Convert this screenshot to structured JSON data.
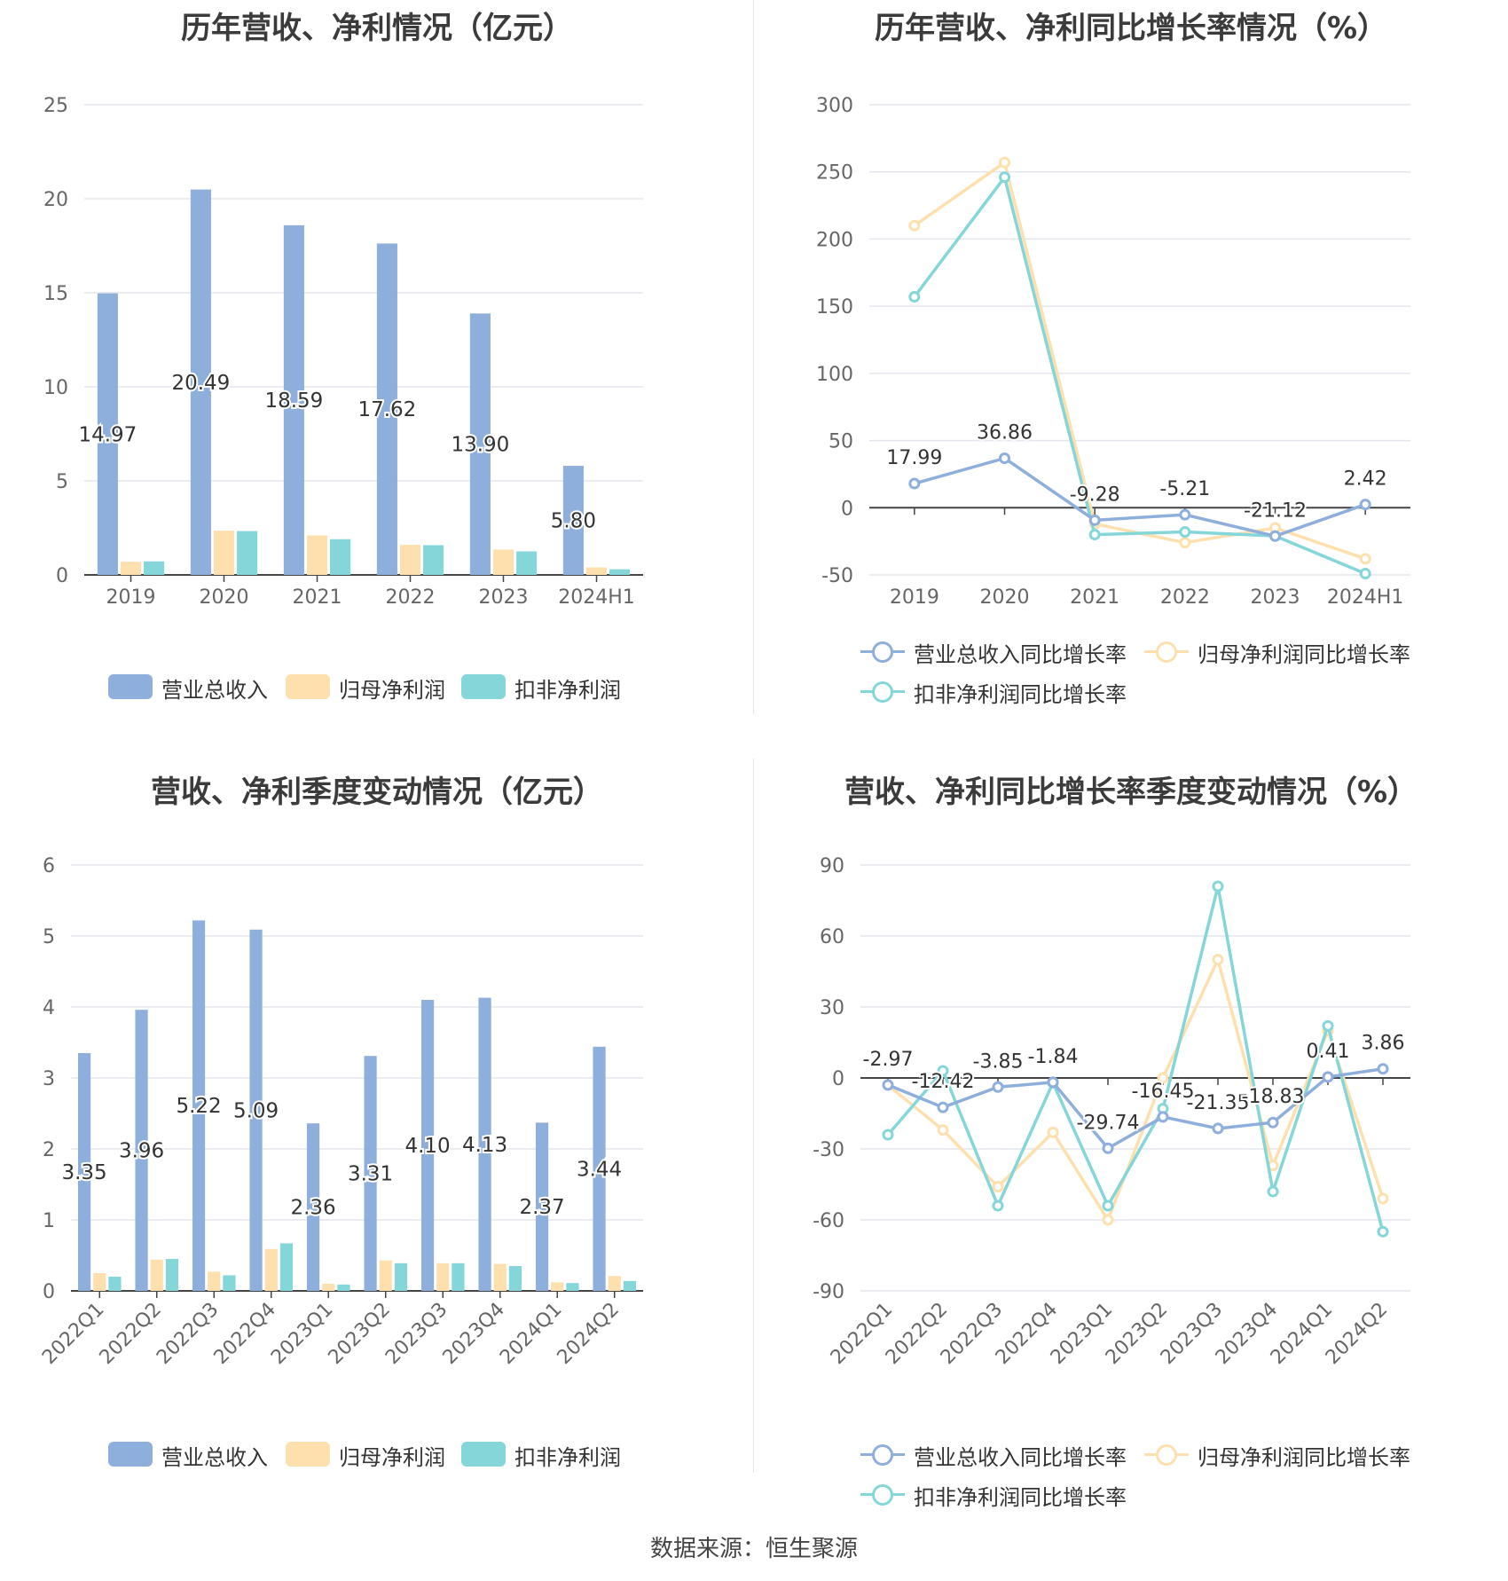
{
  "colors": {
    "revenue": "#8eaedc",
    "net_profit": "#fde0ad",
    "deducted_profit": "#85d6d8",
    "grid": "#e3e6ee",
    "axis": "#444444",
    "tick_text": "#666666"
  },
  "source": "数据来源：恒生聚源",
  "chart_data": [
    {
      "type": "bar",
      "title": "历年营收、净利情况（亿元）",
      "categories": [
        "2019",
        "2020",
        "2021",
        "2022",
        "2023",
        "2024H1"
      ],
      "ylim": [
        0,
        25
      ],
      "yticks": [
        0,
        5,
        10,
        15,
        20,
        25
      ],
      "legend_position": "bottom",
      "grid": true,
      "series": [
        {
          "name": "营业总收入",
          "values": [
            14.97,
            20.49,
            18.59,
            17.62,
            13.9,
            5.8
          ],
          "labels": [
            "14.97",
            "20.49",
            "18.59",
            "17.62",
            "13.90",
            "5.80"
          ]
        },
        {
          "name": "归母净利润",
          "values": [
            0.7,
            2.35,
            2.1,
            1.6,
            1.35,
            0.4
          ]
        },
        {
          "name": "扣非净利润",
          "values": [
            0.72,
            2.33,
            1.9,
            1.58,
            1.25,
            0.3
          ]
        }
      ]
    },
    {
      "type": "line",
      "title": "历年营收、净利同比增长率情况（%）",
      "categories": [
        "2019",
        "2020",
        "2021",
        "2022",
        "2023",
        "2024H1"
      ],
      "ylim": [
        -50,
        300
      ],
      "yticks": [
        -50,
        0,
        50,
        100,
        150,
        200,
        250,
        300
      ],
      "legend_position": "bottom",
      "grid": true,
      "series": [
        {
          "name": "营业总收入同比增长率",
          "values": [
            17.99,
            36.86,
            -9.28,
            -5.21,
            -21.12,
            2.42
          ],
          "labels": [
            "17.99",
            "36.86",
            "-9.28",
            "-5.21",
            "-21.12",
            "2.42"
          ]
        },
        {
          "name": "归母净利润同比增长率",
          "values": [
            210,
            257,
            -12,
            -26,
            -15,
            -38
          ]
        },
        {
          "name": "扣非净利润同比增长率",
          "values": [
            157,
            246,
            -20,
            -18,
            -21,
            -49
          ]
        }
      ]
    },
    {
      "type": "bar",
      "title": "营收、净利季度变动情况（亿元）",
      "categories": [
        "2022Q1",
        "2022Q2",
        "2022Q3",
        "2022Q4",
        "2023Q1",
        "2023Q2",
        "2023Q3",
        "2023Q4",
        "2024Q1",
        "2024Q2"
      ],
      "ylim": [
        0,
        6
      ],
      "yticks": [
        0,
        1,
        2,
        3,
        4,
        5,
        6
      ],
      "legend_position": "bottom",
      "grid": true,
      "series": [
        {
          "name": "营业总收入",
          "values": [
            3.35,
            3.96,
            5.22,
            5.09,
            2.36,
            3.31,
            4.1,
            4.13,
            2.37,
            3.44
          ],
          "labels": [
            "3.35",
            "3.96",
            "5.22",
            "5.09",
            "2.36",
            "3.31",
            "4.10",
            "4.13",
            "2.37",
            "3.44"
          ]
        },
        {
          "name": "归母净利润",
          "values": [
            0.25,
            0.44,
            0.27,
            0.59,
            0.1,
            0.43,
            0.39,
            0.38,
            0.12,
            0.21
          ]
        },
        {
          "name": "扣非净利润",
          "values": [
            0.2,
            0.45,
            0.22,
            0.67,
            0.09,
            0.39,
            0.39,
            0.35,
            0.11,
            0.14
          ]
        }
      ]
    },
    {
      "type": "line",
      "title": "营收、净利同比增长率季度变动情况（%）",
      "categories": [
        "2022Q1",
        "2022Q2",
        "2022Q3",
        "2022Q4",
        "2023Q1",
        "2023Q2",
        "2023Q3",
        "2023Q4",
        "2024Q1",
        "2024Q2"
      ],
      "ylim": [
        -90,
        90
      ],
      "yticks": [
        -90,
        -60,
        -30,
        0,
        30,
        60,
        90
      ],
      "legend_position": "bottom",
      "grid": true,
      "series": [
        {
          "name": "营业总收入同比增长率",
          "values": [
            -2.97,
            -12.42,
            -3.85,
            -1.84,
            -29.74,
            -16.45,
            -21.35,
            -18.83,
            0.41,
            3.86
          ],
          "labels": [
            "-2.97",
            "-12.42",
            "-3.85",
            "-1.84",
            "-29.74",
            "-16.45",
            "-21.35",
            "-18.83",
            "0.41",
            "3.86"
          ]
        },
        {
          "name": "归母净利润同比增长率",
          "values": [
            -3,
            -22,
            -46,
            -23,
            -60,
            0,
            50,
            -37,
            20,
            -51
          ]
        },
        {
          "name": "扣非净利润同比增长率",
          "values": [
            -24,
            3,
            -54,
            -2,
            -54,
            -13,
            81,
            -48,
            22,
            -65
          ]
        }
      ]
    }
  ]
}
